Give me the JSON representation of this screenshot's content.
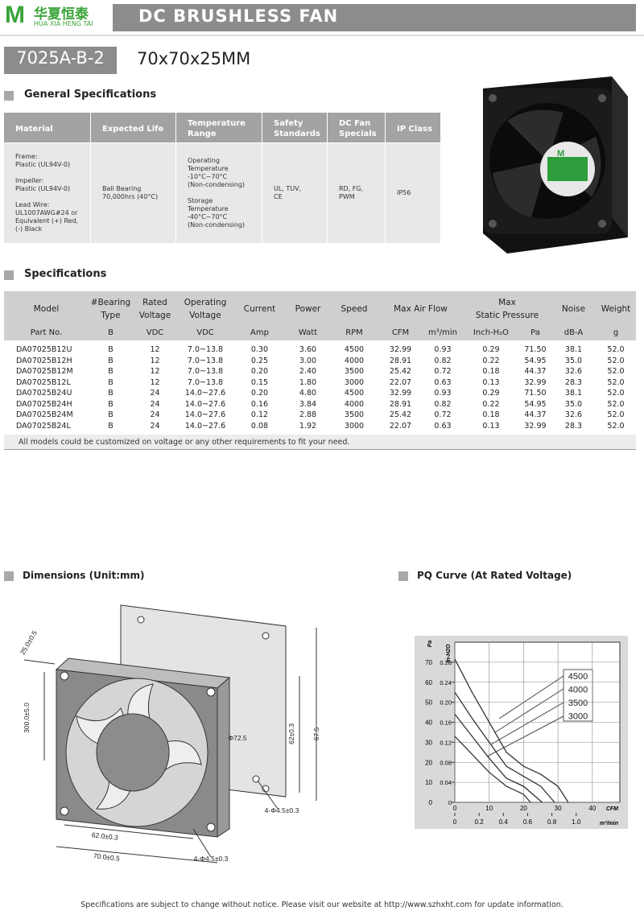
{
  "header": {
    "logo_mark": "M",
    "logo_cn": "华夏恒泰",
    "logo_en": "HUA XIA HENG TAI",
    "banner": "DC BRUSHLESS FAN"
  },
  "model": {
    "name": "7025A-B-2",
    "size": "70x70x25MM"
  },
  "general": {
    "title": "General Specifications",
    "headers": [
      "Material",
      "Expected Life",
      "Temperature\nRange",
      "Safety\nStandards",
      "DC Fan\nSpecials",
      "IP Class"
    ],
    "row": [
      "Frame:\nPlastic (UL94V-0)\n\nImpeller:\nPlastic (UL94V-0)\n\nLead Wire:\nUL1007AWG#24 or\nEquivalent (+) Red,\n(-) Black",
      "Ball Bearing\n70,000hrs (40°C)",
      "Operating\nTemperature\n-10°C~70°C\n(Non-condensing)\n\nStorage\nTemperature\n-40°C~70°C\n(Non-condensing)",
      "UL, TUV,\nCE",
      "RD, FG,\nPWM",
      "IP56"
    ]
  },
  "specs": {
    "title": "Specifications",
    "headers": [
      "Model",
      "#Bearing\nType",
      "Rated\nVoltage",
      "Operating\nVoltage",
      "Current",
      "Power",
      "Speed",
      "Max Air Flow",
      "Max\nStatic Pressure",
      "Noise",
      "Weight"
    ],
    "units": [
      "Part No.",
      "B",
      "VDC",
      "VDC",
      "Amp",
      "Watt",
      "RPM",
      "CFM",
      "m³/min",
      "Inch-H₂O",
      "Pa",
      "dB-A",
      "g"
    ],
    "rows": [
      [
        "DA07025B12U",
        "B",
        "12",
        "7.0~13.8",
        "0.30",
        "3.60",
        "4500",
        "32.99",
        "0.93",
        "0.29",
        "71.50",
        "38.1",
        "52.0"
      ],
      [
        "DA07025B12H",
        "B",
        "12",
        "7.0~13.8",
        "0.25",
        "3.00",
        "4000",
        "28.91",
        "0.82",
        "0.22",
        "54.95",
        "35.0",
        "52.0"
      ],
      [
        "DA07025B12M",
        "B",
        "12",
        "7.0~13.8",
        "0.20",
        "2.40",
        "3500",
        "25.42",
        "0.72",
        "0.18",
        "44.37",
        "32.6",
        "52.0"
      ],
      [
        "DA07025B12L",
        "B",
        "12",
        "7.0~13.8",
        "0.15",
        "1.80",
        "3000",
        "22.07",
        "0.63",
        "0.13",
        "32.99",
        "28.3",
        "52.0"
      ],
      [
        "DA07025B24U",
        "B",
        "24",
        "14.0~27.6",
        "0.20",
        "4.80",
        "4500",
        "32.99",
        "0.93",
        "0.29",
        "71.50",
        "38.1",
        "52.0"
      ],
      [
        "DA07025B24H",
        "B",
        "24",
        "14.0~27.6",
        "0.16",
        "3.84",
        "4000",
        "28.91",
        "0.82",
        "0.22",
        "54.95",
        "35.0",
        "52.0"
      ],
      [
        "DA07025B24M",
        "B",
        "24",
        "14.0~27.6",
        "0.12",
        "2.88",
        "3500",
        "25.42",
        "0.72",
        "0.18",
        "44.37",
        "32.6",
        "52.0"
      ],
      [
        "DA07025B24L",
        "B",
        "24",
        "14.0~27.6",
        "0.08",
        "1.92",
        "3000",
        "22.07",
        "0.63",
        "0.13",
        "32.99",
        "28.3",
        "52.0"
      ]
    ],
    "note": "All models could be customized on voltage or any other requirements to fit your need."
  },
  "dimensions": {
    "title": "Dimensions (Unit:mm)",
    "labels": [
      "25.0±0.5",
      "300.0±5.0",
      "Φ72.5",
      "62±0.3",
      "67.5",
      "4-Φ4.5±0.3",
      "62.0±0.3",
      "70.0±0.5",
      "4-Φ4.5±0.3"
    ]
  },
  "pq": {
    "title": "PQ Curve (At Rated Voltage)",
    "chart": {
      "type": "line",
      "y_label": "Pa",
      "y2_label": "In-H2O",
      "x_label": "CFM",
      "x2_label": "m³/min",
      "xlim": [
        0,
        48
      ],
      "xticks": [
        0,
        10,
        20,
        30,
        40
      ],
      "x2lim": [
        0,
        1.36
      ],
      "x2ticks": [
        0,
        {
          "value": 0.2,
          "label": "0.2"
        },
        0.4,
        0.6,
        0.8,
        {
          "value": 1.0,
          "label": "1.0"
        }
      ],
      "ylim": [
        0,
        80
      ],
      "yticks": [
        0,
        10,
        20,
        30,
        40,
        50,
        60,
        70
      ],
      "y2lim": [
        0,
        0.32
      ],
      "y2ticks": [
        0,
        0.04,
        0.08,
        0.12,
        0.16,
        {
          "value": 0.2,
          "label": "0.20"
        },
        0.24,
        0.28
      ],
      "grid": true,
      "series": [
        {
          "name": "4500",
          "color": "#333333",
          "x": [
            0,
            5,
            10,
            15,
            20,
            25,
            30,
            33
          ],
          "values": [
            71.5,
            55,
            40,
            25,
            18,
            14,
            8,
            0
          ]
        },
        {
          "name": "4000",
          "color": "#333333",
          "x": [
            0,
            5,
            10,
            15,
            20,
            25,
            29
          ],
          "values": [
            55,
            42,
            30,
            18,
            13,
            8,
            0
          ]
        },
        {
          "name": "3500",
          "color": "#333333",
          "x": [
            0,
            5,
            10,
            15,
            20,
            25.4
          ],
          "values": [
            44,
            33,
            22,
            12,
            8,
            0
          ]
        },
        {
          "name": "3000",
          "color": "#333333",
          "x": [
            0,
            5,
            10,
            15,
            20,
            22
          ],
          "values": [
            33,
            24,
            15,
            8,
            4,
            0
          ]
        }
      ]
    }
  },
  "footer": "Specifications are subject to change without notice. Please visit our website at http://www.szhxht.com for update information."
}
